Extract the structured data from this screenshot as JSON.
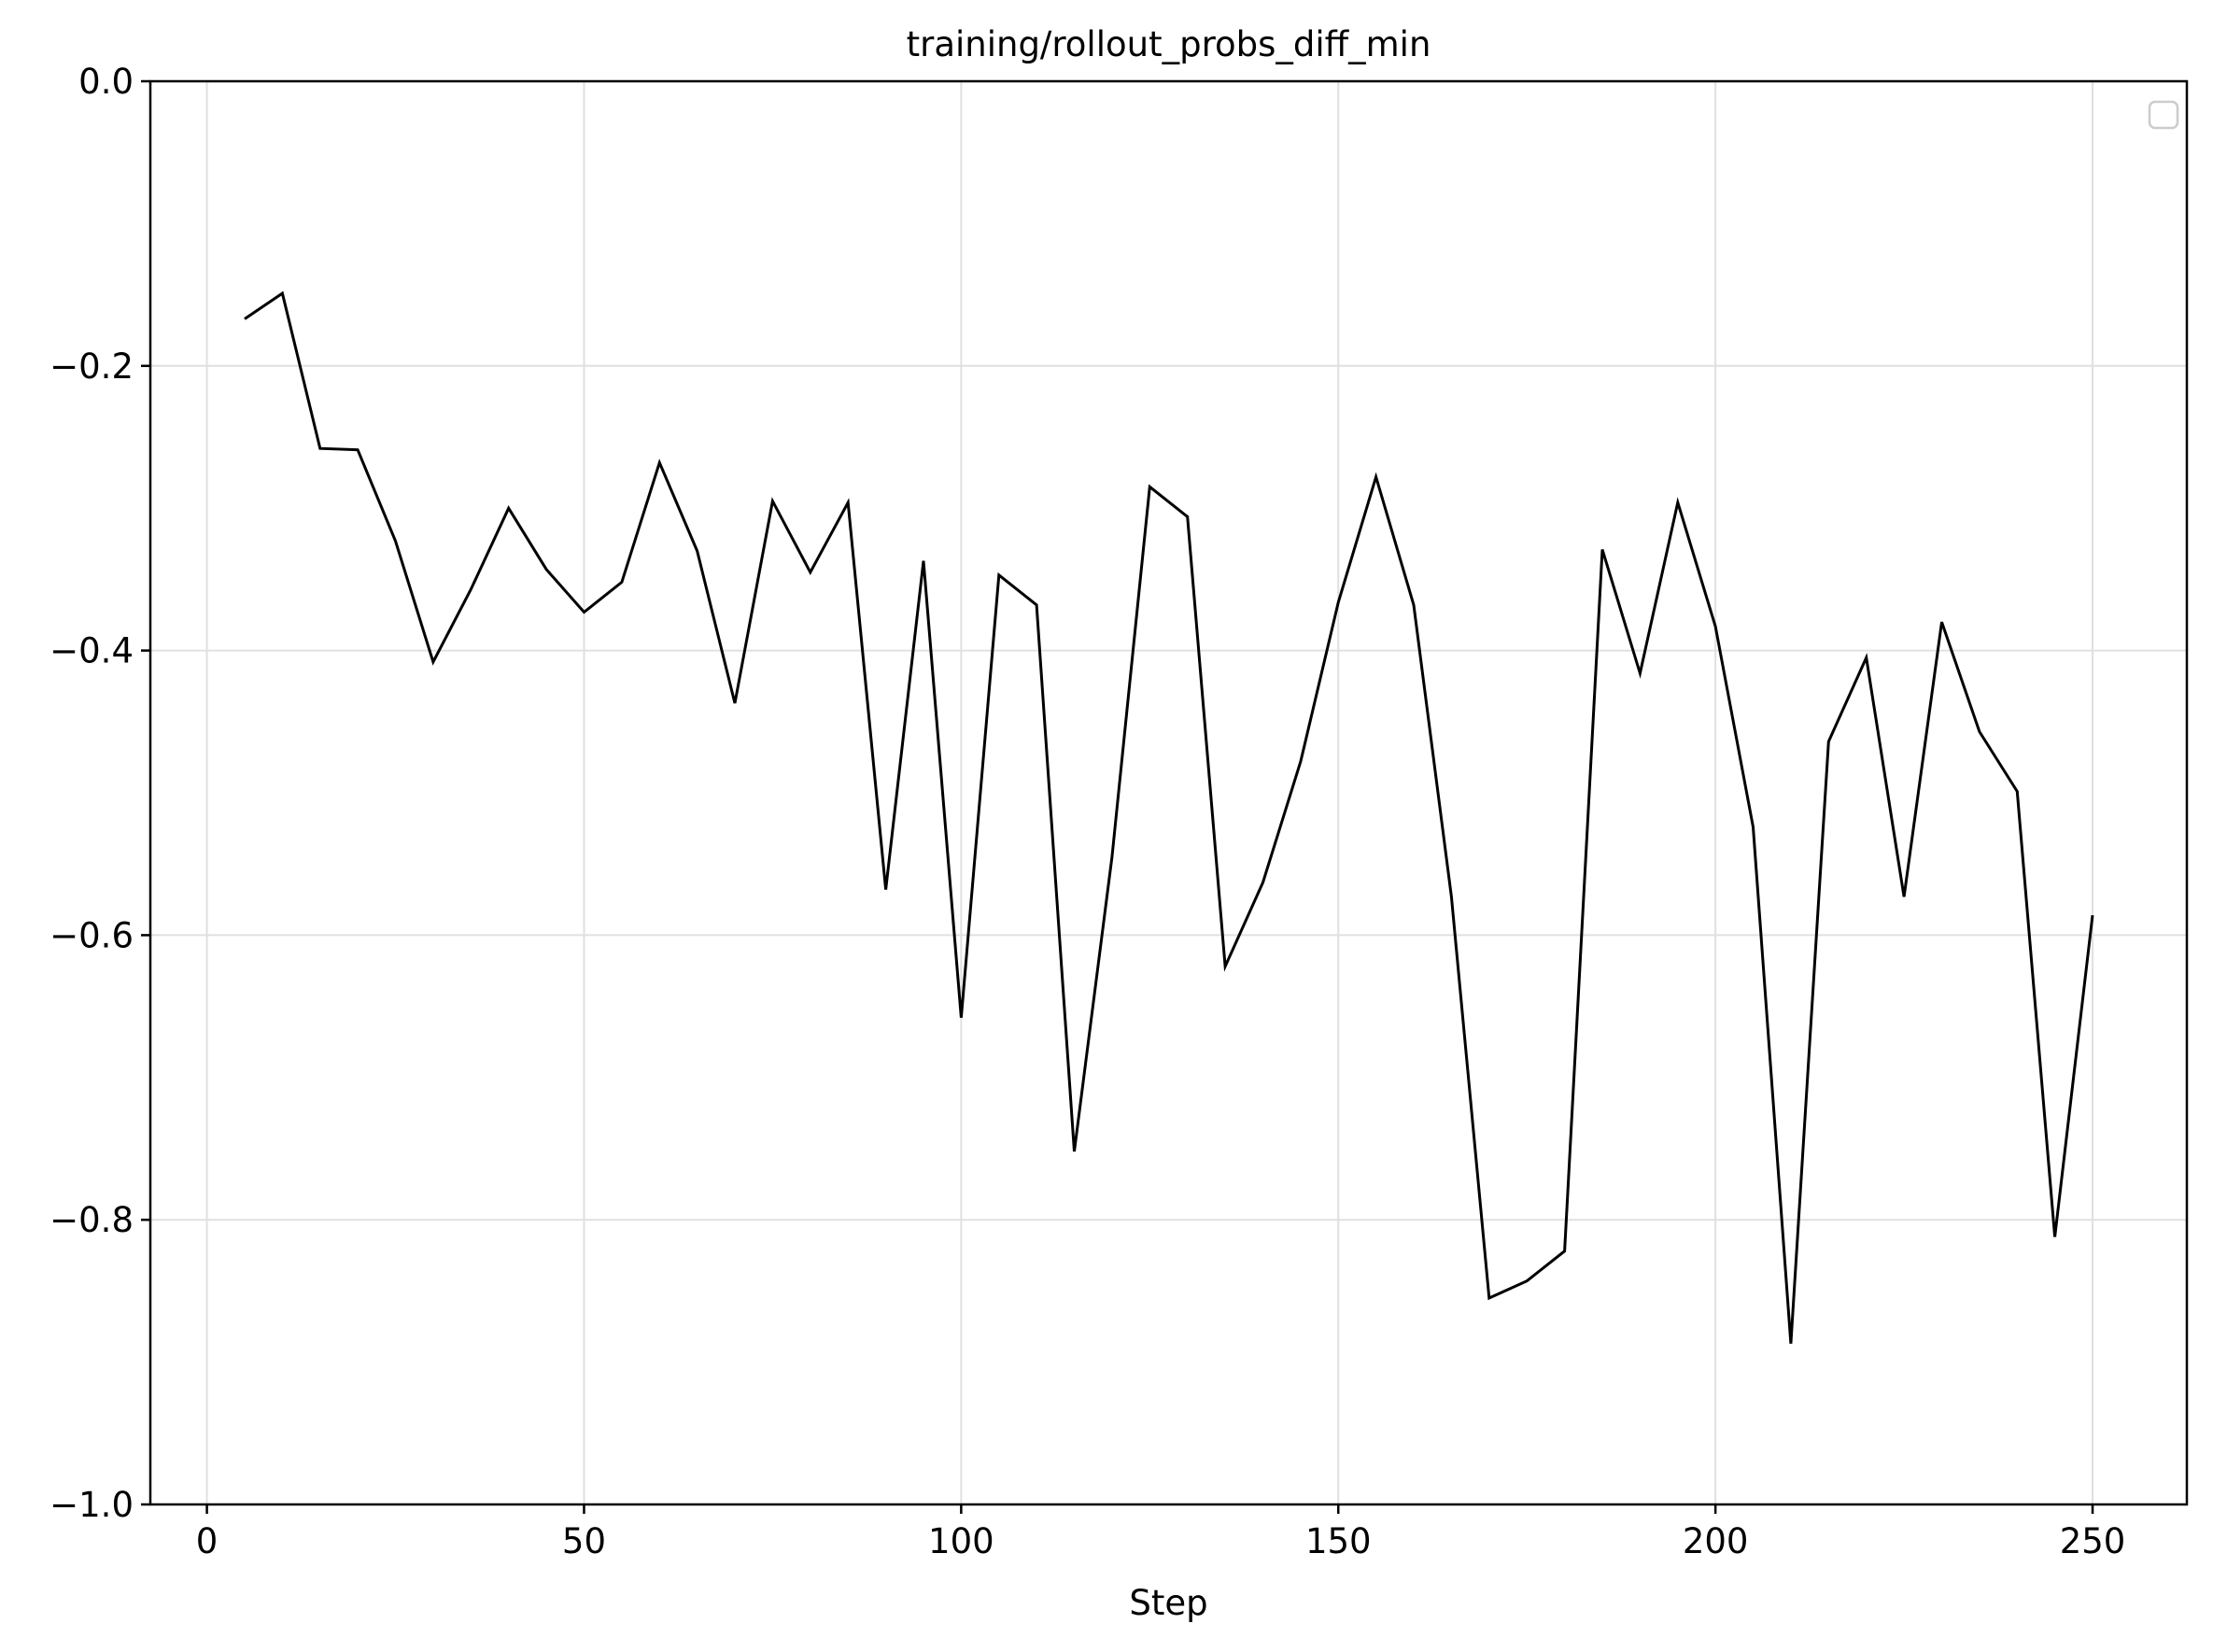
{
  "chart_data": {
    "type": "line",
    "title": "training/rollout_probs_diff_min",
    "xlabel": "Step",
    "ylabel": "",
    "xlim": [
      -7.5,
      262.5
    ],
    "ylim": [
      -1.0,
      0.0
    ],
    "xticks": [
      0,
      50,
      100,
      150,
      200,
      250
    ],
    "xtick_labels": [
      "0",
      "50",
      "100",
      "150",
      "200",
      "250"
    ],
    "yticks": [
      0.0,
      -0.2,
      -0.4,
      -0.6,
      -0.8,
      -1.0
    ],
    "ytick_labels": [
      "0.0",
      "−0.2",
      "−0.4",
      "−0.6",
      "−0.8",
      "−1.0"
    ],
    "grid": true,
    "legend": {
      "position": "top-right",
      "entries": []
    },
    "colors": {
      "line": "#000000",
      "grid": "#e0e0e0",
      "frame": "#000000"
    },
    "series": [
      {
        "x": [
          5,
          10,
          15,
          20,
          25,
          30,
          35,
          40,
          45,
          50,
          55,
          60,
          65,
          70,
          75,
          80,
          85,
          90,
          95,
          100,
          105,
          110,
          115,
          120,
          125,
          130,
          135,
          140,
          145,
          150,
          155,
          160,
          165,
          170,
          175,
          180,
          185,
          190,
          195,
          200,
          205,
          210,
          215,
          220,
          225,
          230,
          235,
          240,
          245,
          250
        ],
        "y": [
          -0.167,
          -0.149,
          -0.258,
          -0.259,
          -0.323,
          -0.408,
          -0.357,
          -0.3,
          -0.343,
          -0.373,
          -0.352,
          -0.268,
          -0.33,
          -0.437,
          -0.295,
          -0.345,
          -0.296,
          -0.568,
          -0.337,
          -0.658,
          -0.347,
          -0.368,
          -0.752,
          -0.545,
          -0.285,
          -0.306,
          -0.622,
          -0.563,
          -0.478,
          -0.366,
          -0.278,
          -0.368,
          -0.573,
          -0.855,
          -0.843,
          -0.822,
          -0.329,
          -0.416,
          -0.296,
          -0.383,
          -0.524,
          -0.887,
          -0.464,
          -0.405,
          -0.573,
          -0.38,
          -0.457,
          -0.499,
          -0.812,
          -0.586
        ]
      }
    ]
  }
}
